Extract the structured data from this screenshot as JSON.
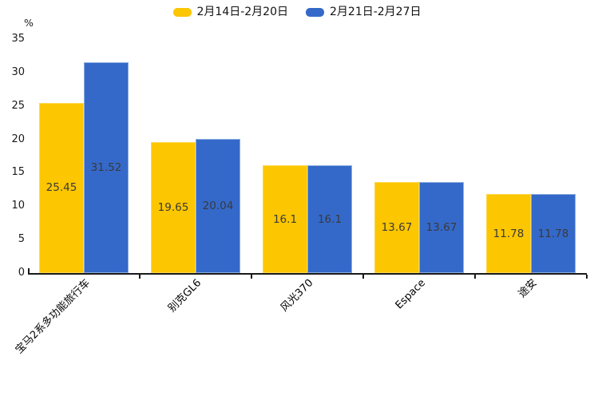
{
  "chart_data": {
    "type": "bar",
    "title": "",
    "unit_label": "%",
    "categories": [
      "宝马2系多功能旅行车",
      "别克GL6",
      "风光370",
      "Espace",
      "途安"
    ],
    "series": [
      {
        "name": "2月14日-2月20日",
        "color": "#FCC600",
        "edge_color": "#FFD84D",
        "values": [
          25.45,
          19.65,
          16.1,
          13.67,
          11.78
        ]
      },
      {
        "name": "2月21日-2月27日",
        "color": "#3469C9",
        "edge_color": "#8AACDF",
        "values": [
          31.52,
          20.04,
          16.1,
          13.67,
          11.78
        ]
      }
    ],
    "data_labels": [
      [
        "25.45",
        "19.65",
        "16.1",
        "13.67",
        "11.78"
      ],
      [
        "31.52",
        "20.04",
        "16.1",
        "13.67",
        "11.78"
      ]
    ],
    "ylabel": "",
    "xlabel": "",
    "ylim": [
      0,
      35
    ],
    "ytick_step": 5,
    "ytick_labels": [
      "0",
      "5",
      "10",
      "15",
      "20",
      "25",
      "30",
      "35"
    ],
    "legend_position": "top-center",
    "grid": false,
    "bar_label_color": "#3a3a3a",
    "axis_color": "#1a1a1a",
    "background_color": "#ffffff",
    "x_labels_rotation_deg": 45
  }
}
